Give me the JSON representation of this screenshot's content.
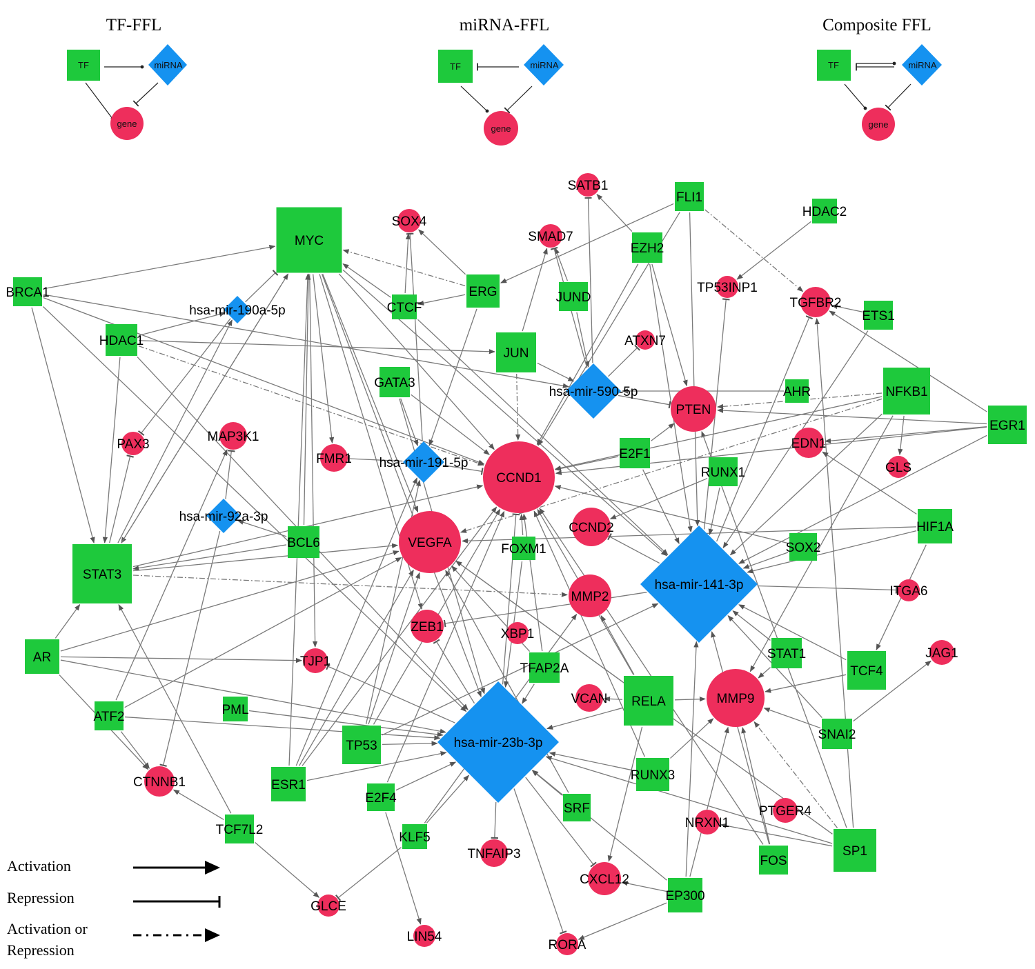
{
  "colors": {
    "tf": "#1ec93c",
    "mirna": "#1592f0",
    "gene": "#ee2e5c",
    "edge": "#7a7a7a"
  },
  "motifs": [
    {
      "title": "TF-FFL",
      "tf": "TF",
      "mirna": "miRNA",
      "gene": "gene"
    },
    {
      "title": "miRNA-FFL",
      "tf": "TF",
      "mirna": "miRNA",
      "gene": "gene"
    },
    {
      "title": "Composite FFL",
      "tf": "TF",
      "mirna": "miRNA",
      "gene": "gene"
    }
  ],
  "legend": [
    {
      "label": "Activation",
      "type": "activation"
    },
    {
      "label": "Repression",
      "type": "repression"
    },
    {
      "label_line1": "Activation or",
      "label_line2": "Repression",
      "type": "activation-or-repression"
    }
  ],
  "nodes": {
    "genes": [
      "SATB1",
      "SOX4",
      "SMAD7",
      "TP53INP1",
      "TGFBR2",
      "ATXN7",
      "PTEN",
      "EDN1",
      "GLS",
      "PAX3",
      "MAP3K1",
      "FMR1",
      "CCND1",
      "CCND2",
      "VEGFA",
      "MMP2",
      "ITGA6",
      "ZEB1",
      "XBP1",
      "TJP1",
      "JAG1",
      "VCAN",
      "MMP9",
      "CTNNB1",
      "PTGER4",
      "NRXN1",
      "TNFAIP3",
      "CXCL12",
      "GLCE",
      "LIN54",
      "RORA"
    ],
    "tfs": [
      "FLI1",
      "HDAC2",
      "MYC",
      "EZH2",
      "ERG",
      "JUND",
      "BRCA1",
      "CTCF",
      "ETS1",
      "HDAC1",
      "JUN",
      "GATA3",
      "AHR",
      "NFKB1",
      "EGR1",
      "E2F1",
      "RUNX1",
      "HIF1A",
      "BCL6",
      "FOXM1",
      "SOX2",
      "STAT3",
      "AR",
      "STAT1",
      "TCF4",
      "TFAP2A",
      "RELA",
      "PML",
      "ATF2",
      "SNAI2",
      "TP53",
      "RUNX3",
      "ESR1",
      "E2F4",
      "SRF",
      "TCF7L2",
      "KLF5",
      "SP1",
      "FOS",
      "EP300"
    ],
    "mirnas": [
      "hsa-mir-190a-5p",
      "hsa-mir-590-5p",
      "hsa-mir-191-5p",
      "hsa-mir-92a-3p",
      "hsa-mir-141-3p",
      "hsa-mir-23b-3p"
    ]
  },
  "edges": [
    [
      "MYC",
      "CCND1",
      "a"
    ],
    [
      "MYC",
      "VEGFA",
      "a"
    ],
    [
      "MYC",
      "FMR1",
      "a"
    ],
    [
      "MYC",
      "ZEB1",
      "a"
    ],
    [
      "MYC",
      "hsa-mir-23b-3p",
      "a"
    ],
    [
      "MYC",
      "hsa-mir-141-3p",
      "a"
    ],
    [
      "MYC",
      "STAT3",
      "a"
    ],
    [
      "MYC",
      "TJP1",
      "a"
    ],
    [
      "BRCA1",
      "MYC",
      "a"
    ],
    [
      "BRCA1",
      "STAT3",
      "a"
    ],
    [
      "BRCA1",
      "CCND1",
      "a"
    ],
    [
      "BRCA1",
      "hsa-mir-23b-3p",
      "a"
    ],
    [
      "BRCA1",
      "hsa-mir-590-5p",
      "a"
    ],
    [
      "HDAC1",
      "STAT3",
      "a"
    ],
    [
      "HDAC1",
      "hsa-mir-190a-5p",
      "a"
    ],
    [
      "HDAC1",
      "hsa-mir-23b-3p",
      "a"
    ],
    [
      "HDAC1",
      "CCND1",
      "d"
    ],
    [
      "HDAC1",
      "JUN",
      "a"
    ],
    [
      "STAT3",
      "MYC",
      "d"
    ],
    [
      "STAT3",
      "hsa-mir-190a-5p",
      "a"
    ],
    [
      "STAT3",
      "PAX3",
      "r"
    ],
    [
      "STAT3",
      "VEGFA",
      "a"
    ],
    [
      "STAT3",
      "CCND1",
      "a"
    ],
    [
      "STAT3",
      "MMP2",
      "d"
    ],
    [
      "AR",
      "STAT3",
      "a"
    ],
    [
      "AR",
      "hsa-mir-23b-3p",
      "a"
    ],
    [
      "AR",
      "VEGFA",
      "a"
    ],
    [
      "AR",
      "TJP1",
      "a"
    ],
    [
      "AR",
      "CTNNB1",
      "a"
    ],
    [
      "ATF2",
      "CTNNB1",
      "a"
    ],
    [
      "ATF2",
      "MAP3K1",
      "a"
    ],
    [
      "ATF2",
      "hsa-mir-23b-3p",
      "a"
    ],
    [
      "ATF2",
      "VEGFA",
      "a"
    ],
    [
      "TCF7L2",
      "CTNNB1",
      "a"
    ],
    [
      "TCF7L2",
      "STAT3",
      "a"
    ],
    [
      "TCF7L2",
      "GLCE",
      "a"
    ],
    [
      "ESR1",
      "hsa-mir-191-5p",
      "a"
    ],
    [
      "ESR1",
      "VEGFA",
      "a"
    ],
    [
      "ESR1",
      "CCND1",
      "a"
    ],
    [
      "ESR1",
      "hsa-mir-23b-3p",
      "a"
    ],
    [
      "ESR1",
      "MYC",
      "a"
    ],
    [
      "PML",
      "hsa-mir-23b-3p",
      "a"
    ],
    [
      "TP53",
      "hsa-mir-191-5p",
      "a"
    ],
    [
      "TP53",
      "VEGFA",
      "a"
    ],
    [
      "TP53",
      "CCND1",
      "a"
    ],
    [
      "TP53",
      "hsa-mir-23b-3p",
      "a"
    ],
    [
      "TP53",
      "hsa-mir-141-3p",
      "a"
    ],
    [
      "E2F4",
      "LIN54",
      "a"
    ],
    [
      "E2F4",
      "hsa-mir-23b-3p",
      "a"
    ],
    [
      "E2F4",
      "CCND1",
      "a"
    ],
    [
      "KLF5",
      "GLCE",
      "r"
    ],
    [
      "KLF5",
      "hsa-mir-23b-3p",
      "a"
    ],
    [
      "KLF5",
      "MMP2",
      "a"
    ],
    [
      "SRF",
      "hsa-mir-23b-3p",
      "a"
    ],
    [
      "SRF",
      "VEGFA",
      "a"
    ],
    [
      "TFAP2A",
      "hsa-mir-23b-3p",
      "a"
    ],
    [
      "TFAP2A",
      "CCND1",
      "a"
    ],
    [
      "TFAP2A",
      "VEGFA",
      "a"
    ],
    [
      "RELA",
      "VEGFA",
      "a"
    ],
    [
      "RELA",
      "CCND1",
      "a"
    ],
    [
      "RELA",
      "MMP9",
      "a"
    ],
    [
      "RELA",
      "MMP2",
      "a"
    ],
    [
      "RELA",
      "hsa-mir-23b-3p",
      "a"
    ],
    [
      "RELA",
      "VCAN",
      "a"
    ],
    [
      "RELA",
      "CXCL12",
      "a"
    ],
    [
      "RUNX3",
      "hsa-mir-23b-3p",
      "a"
    ],
    [
      "RUNX3",
      "MMP9",
      "a"
    ],
    [
      "RUNX3",
      "CCND1",
      "a"
    ],
    [
      "EP300",
      "CXCL12",
      "a"
    ],
    [
      "EP300",
      "RORA",
      "a"
    ],
    [
      "EP300",
      "hsa-mir-23b-3p",
      "a"
    ],
    [
      "EP300",
      "MMP9",
      "a"
    ],
    [
      "EP300",
      "hsa-mir-141-3p",
      "a"
    ],
    [
      "FOS",
      "MMP9",
      "a"
    ],
    [
      "FOS",
      "hsa-mir-141-3p",
      "a"
    ],
    [
      "FOS",
      "CCND1",
      "a"
    ],
    [
      "SP1",
      "hsa-mir-23b-3p",
      "a"
    ],
    [
      "SP1",
      "MMP9",
      "d"
    ],
    [
      "SP1",
      "VEGFA",
      "a"
    ],
    [
      "SP1",
      "TGFBR2",
      "a"
    ],
    [
      "SP1",
      "PTEN",
      "a"
    ],
    [
      "SP1",
      "NRXN1",
      "a"
    ],
    [
      "SNAI2",
      "hsa-mir-141-3p",
      "a"
    ],
    [
      "SNAI2",
      "MMP9",
      "a"
    ],
    [
      "SNAI2",
      "JAG1",
      "a"
    ],
    [
      "TCF4",
      "hsa-mir-141-3p",
      "a"
    ],
    [
      "TCF4",
      "MMP9",
      "a"
    ],
    [
      "STAT1",
      "hsa-mir-141-3p",
      "a"
    ],
    [
      "STAT1",
      "MMP9",
      "a"
    ],
    [
      "HIF1A",
      "VEGFA",
      "a"
    ],
    [
      "HIF1A",
      "hsa-mir-141-3p",
      "a"
    ],
    [
      "HIF1A",
      "EDN1",
      "a"
    ],
    [
      "HIF1A",
      "TCF4",
      "a"
    ],
    [
      "EGR1",
      "PTEN",
      "a"
    ],
    [
      "EGR1",
      "TGFBR2",
      "a"
    ],
    [
      "EGR1",
      "hsa-mir-141-3p",
      "a"
    ],
    [
      "EGR1",
      "EDN1",
      "a"
    ],
    [
      "EGR1",
      "CCND1",
      "a"
    ],
    [
      "NFKB1",
      "PTEN",
      "d"
    ],
    [
      "NFKB1",
      "CCND1",
      "a"
    ],
    [
      "NFKB1",
      "VEGFA",
      "d"
    ],
    [
      "NFKB1",
      "hsa-mir-141-3p",
      "a"
    ],
    [
      "NFKB1",
      "GLS",
      "a"
    ],
    [
      "NFKB1",
      "MMP9",
      "a"
    ],
    [
      "ETS1",
      "TGFBR2",
      "a"
    ],
    [
      "ETS1",
      "hsa-mir-141-3p",
      "a"
    ],
    [
      "AHR",
      "hsa-mir-590-5p",
      "a"
    ],
    [
      "SOX2",
      "CCND1",
      "a"
    ],
    [
      "SOX2",
      "hsa-mir-141-3p",
      "a"
    ],
    [
      "RUNX1",
      "CCND2",
      "a"
    ],
    [
      "RUNX1",
      "hsa-mir-141-3p",
      "a"
    ],
    [
      "E2F1",
      "CCND1",
      "a"
    ],
    [
      "E2F1",
      "hsa-mir-141-3p",
      "a"
    ],
    [
      "E2F1",
      "PTEN",
      "a"
    ],
    [
      "FLI1",
      "ERG",
      "a"
    ],
    [
      "FLI1",
      "TGFBR2",
      "d"
    ],
    [
      "FLI1",
      "hsa-mir-141-3p",
      "a"
    ],
    [
      "FLI1",
      "CCND1",
      "a"
    ],
    [
      "EZH2",
      "SATB1",
      "a"
    ],
    [
      "EZH2",
      "PTEN",
      "a"
    ],
    [
      "EZH2",
      "CCND1",
      "a"
    ],
    [
      "EZH2",
      "hsa-mir-141-3p",
      "a"
    ],
    [
      "HDAC2",
      "TP53INP1",
      "a"
    ],
    [
      "JUND",
      "SMAD7",
      "a"
    ],
    [
      "JUND",
      "hsa-mir-590-5p",
      "a"
    ],
    [
      "JUN",
      "CCND1",
      "d"
    ],
    [
      "JUN",
      "hsa-mir-590-5p",
      "a"
    ],
    [
      "JUN",
      "SMAD7",
      "a"
    ],
    [
      "ERG",
      "SOX4",
      "a"
    ],
    [
      "ERG",
      "CTCF",
      "a"
    ],
    [
      "ERG",
      "hsa-mir-191-5p",
      "a"
    ],
    [
      "ERG",
      "MYC",
      "d"
    ],
    [
      "CTCF",
      "SOX4",
      "a"
    ],
    [
      "CTCF",
      "hsa-mir-141-3p",
      "a"
    ],
    [
      "CTCF",
      "MYC",
      "a"
    ],
    [
      "GATA3",
      "hsa-mir-191-5p",
      "a"
    ],
    [
      "GATA3",
      "CCND1",
      "a"
    ],
    [
      "GATA3",
      "hsa-mir-23b-3p",
      "a"
    ],
    [
      "BCL6",
      "hsa-mir-92a-3p",
      "a"
    ],
    [
      "BCL6",
      "STAT3",
      "a"
    ],
    [
      "BCL6",
      "MYC",
      "a"
    ],
    [
      "FOXM1",
      "CCND1",
      "a"
    ],
    [
      "FOXM1",
      "hsa-mir-23b-3p",
      "a"
    ],
    [
      "hsa-mir-590-5p",
      "SATB1",
      "r"
    ],
    [
      "hsa-mir-590-5p",
      "ATXN7",
      "r"
    ],
    [
      "hsa-mir-590-5p",
      "SMAD7",
      "r"
    ],
    [
      "hsa-mir-590-5p",
      "PTEN",
      "r"
    ],
    [
      "hsa-mir-141-3p",
      "ZEB1",
      "r"
    ],
    [
      "hsa-mir-141-3p",
      "TGFBR2",
      "r"
    ],
    [
      "hsa-mir-141-3p",
      "CCND2",
      "r"
    ],
    [
      "hsa-mir-141-3p",
      "TP53INP1",
      "r"
    ],
    [
      "hsa-mir-141-3p",
      "ITGA6",
      "r"
    ],
    [
      "hsa-mir-23b-3p",
      "TNFAIP3",
      "r"
    ],
    [
      "hsa-mir-23b-3p",
      "CXCL12",
      "r"
    ],
    [
      "hsa-mir-23b-3p",
      "RORA",
      "r"
    ],
    [
      "hsa-mir-23b-3p",
      "ZEB1",
      "r"
    ],
    [
      "hsa-mir-23b-3p",
      "TJP1",
      "r"
    ],
    [
      "hsa-mir-23b-3p",
      "CCND1",
      "r"
    ],
    [
      "hsa-mir-191-5p",
      "CCND1",
      "r"
    ],
    [
      "hsa-mir-191-5p",
      "SOX4",
      "r"
    ],
    [
      "hsa-mir-191-5p",
      "FMR1",
      "r"
    ],
    [
      "hsa-mir-92a-3p",
      "CTNNB1",
      "r"
    ],
    [
      "hsa-mir-92a-3p",
      "MAP3K1",
      "r"
    ],
    [
      "hsa-mir-190a-5p",
      "MYC",
      "r"
    ],
    [
      "hsa-mir-190a-5p",
      "PAX3",
      "r"
    ]
  ]
}
